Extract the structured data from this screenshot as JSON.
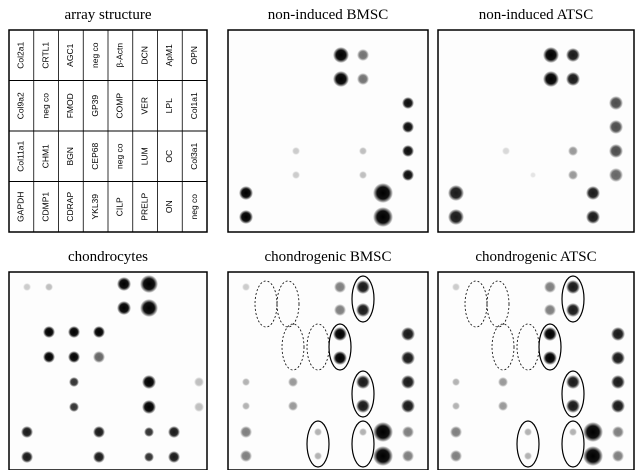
{
  "array_structure": {
    "title": "array structure",
    "rows": [
      [
        "Col2a1",
        "CRTL1",
        "AGC1",
        "neg co",
        "β-Actn",
        "DCN",
        "ApM1",
        "OPN"
      ],
      [
        "Col9a2",
        "neg co",
        "FMOD",
        "GP39",
        "COMP",
        "VER",
        "LPL",
        "Col1a1"
      ],
      [
        "Col11a1",
        "CHM1",
        "BGN",
        "CEP68",
        "neg co",
        "LUM",
        "OC",
        "Col3a1"
      ],
      [
        "GAPDH",
        "CDMP1",
        "CDRAP",
        "YKL39",
        "CILP",
        "PRELP",
        "ON",
        "neg co"
      ]
    ]
  },
  "panels": [
    {
      "title": "non-induced BMSC"
    },
    {
      "title": "non-induced ATSC"
    },
    {
      "title": "chondrocytes"
    },
    {
      "title": "chondrogenic BMSC"
    },
    {
      "title": "chondrogenic ATSC"
    }
  ]
}
